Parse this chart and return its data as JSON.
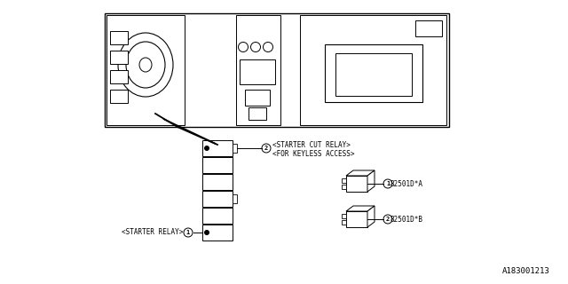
{
  "bg_color": "#ffffff",
  "line_color": "#000000",
  "line_width": 0.7,
  "part_number_1": "82501D*A",
  "part_number_2": "82501D*B",
  "label_starter_relay": "<STARTER RELAY>",
  "label_starter_cut_relay": "<STARTER CUT RELAY>",
  "label_for_keyless": "<FOR KEYLESS ACCESS>",
  "watermark": "A183001213",
  "font_size_labels": 5.5,
  "font_size_watermark": 6.5
}
